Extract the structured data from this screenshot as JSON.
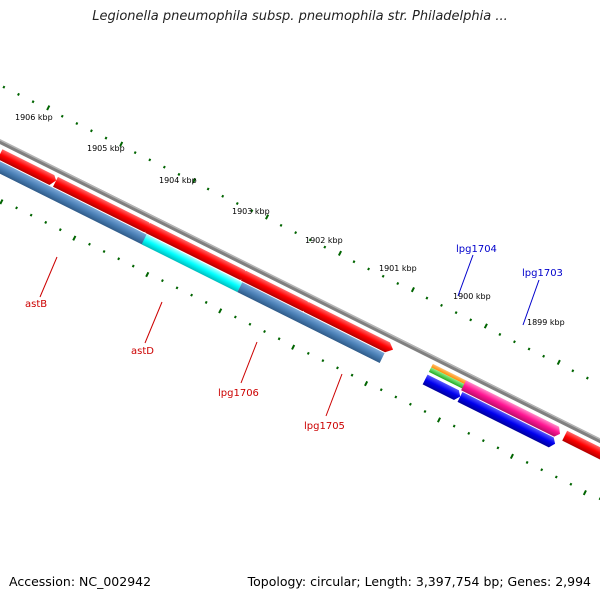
{
  "title": "Legionella pneumophila subsp. pneumophila str. Philadelphia ...",
  "footer": {
    "accession": "Accession: NC_002942",
    "summary": "Topology: circular; Length: 3,397,754 bp; Genes: 2,994"
  },
  "ruler_labels": [
    "1906 kbp",
    "1905 kbp",
    "1904 kbp",
    "1903 kbp",
    "1902 kbp",
    "1901 kbp",
    "1900 kbp",
    "1899 kbp"
  ],
  "gene_labels": {
    "astB": "astB",
    "astD": "astD",
    "lpg1706": "lpg1706",
    "lpg1705": "lpg1705",
    "lpg1704": "lpg1704",
    "lpg1703": "lpg1703"
  },
  "colors": {
    "backbone": "#808080",
    "cds_red": "#ff0000",
    "steel_blue": "#4a7fb5",
    "cyan": "#00ffff",
    "blue": "#0000ee",
    "magenta": "#ff1493",
    "orange": "#ff8c00",
    "green": "#33cc33",
    "tick_green": "#006400",
    "label_red": "#cc0000",
    "label_blue": "#0000cc"
  }
}
